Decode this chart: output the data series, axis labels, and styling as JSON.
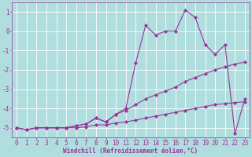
{
  "background_color": "#b0dede",
  "grid_color": "#ffffff",
  "line_color": "#993399",
  "marker": "D",
  "markersize": 2.0,
  "linewidth": 0.8,
  "xlabel": "Windchill (Refroidissement éolien,°C)",
  "xlabel_fontsize": 5.5,
  "tick_fontsize": 5.5,
  "ylim": [
    -5.5,
    1.5
  ],
  "xlim": [
    -0.5,
    23.5
  ],
  "yticks": [
    1,
    0,
    -1,
    -2,
    -3,
    -4,
    -5
  ],
  "xticks": [
    0,
    1,
    2,
    3,
    4,
    5,
    6,
    7,
    8,
    9,
    10,
    11,
    12,
    13,
    14,
    15,
    16,
    17,
    18,
    19,
    20,
    21,
    22,
    23
  ],
  "line1_x": [
    0,
    1,
    2,
    3,
    4,
    5,
    6,
    7,
    8,
    9,
    10,
    11,
    12,
    13,
    14,
    15,
    16,
    17,
    18,
    19,
    20,
    21,
    22,
    23
  ],
  "line1_y": [
    -5.0,
    -5.1,
    -5.0,
    -5.0,
    -5.0,
    -5.0,
    -5.0,
    -4.95,
    -4.85,
    -4.85,
    -4.75,
    -4.7,
    -4.6,
    -4.5,
    -4.4,
    -4.3,
    -4.2,
    -4.1,
    -4.0,
    -3.9,
    -3.8,
    -3.75,
    -3.7,
    -3.65
  ],
  "line2_x": [
    0,
    1,
    2,
    3,
    4,
    5,
    6,
    7,
    8,
    9,
    10,
    11,
    12,
    13,
    14,
    15,
    16,
    17,
    18,
    19,
    20,
    21,
    22,
    23
  ],
  "line2_y": [
    -5.0,
    -5.1,
    -5.0,
    -5.0,
    -5.0,
    -5.0,
    -4.9,
    -4.8,
    -4.5,
    -4.7,
    -4.3,
    -4.1,
    -3.8,
    -3.5,
    -3.3,
    -3.1,
    -2.9,
    -2.6,
    -2.4,
    -2.2,
    -2.0,
    -1.85,
    -1.7,
    -1.6
  ],
  "line3_x": [
    0,
    1,
    2,
    3,
    4,
    5,
    6,
    7,
    8,
    9,
    10,
    11,
    12,
    13,
    14,
    15,
    16,
    17,
    18,
    19,
    20,
    21,
    22,
    23
  ],
  "line3_y": [
    -5.0,
    -5.1,
    -5.0,
    -5.0,
    -5.0,
    -5.0,
    -4.9,
    -4.8,
    -4.5,
    -4.7,
    -4.3,
    -4.0,
    -1.65,
    0.3,
    -0.2,
    0.0,
    0.0,
    1.1,
    0.7,
    -0.7,
    -1.2,
    -0.7,
    -5.3,
    -3.5
  ]
}
